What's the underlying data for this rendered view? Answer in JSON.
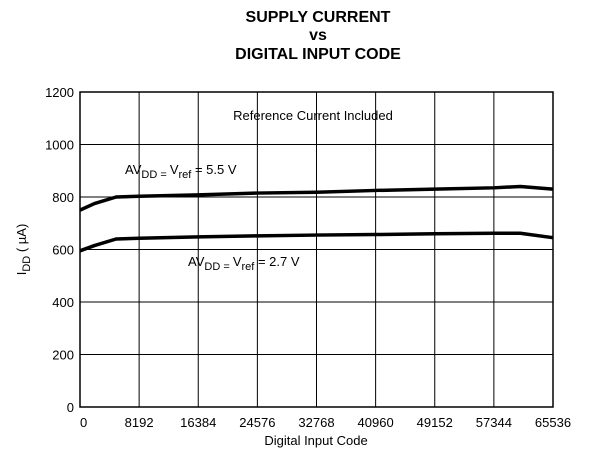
{
  "chart_data": {
    "type": "line",
    "title": [
      "SUPPLY CURRENT",
      "vs",
      "DIGITAL INPUT CODE"
    ],
    "x_label": "Digital Input Code",
    "y_label": [
      {
        "text": "I"
      },
      {
        "text": "DD",
        "sub": true
      },
      {
        "text": " ( µA)"
      }
    ],
    "annotations": [
      "Reference Current Included"
    ],
    "xlim": [
      0,
      65536
    ],
    "xticks": [
      0,
      8192,
      16384,
      24576,
      32768,
      40960,
      49152,
      57344,
      65536
    ],
    "ylim": [
      0,
      1200
    ],
    "yticks": [
      0,
      200,
      400,
      600,
      800,
      1000,
      1200
    ],
    "grid": true,
    "series": [
      {
        "name": [
          {
            "text": "AV"
          },
          {
            "text": "DD = ",
            "sub": true
          },
          {
            "text": "V"
          },
          {
            "text": "ref",
            "sub": true
          },
          {
            "text": " = 5.5 V"
          }
        ],
        "color": "#000000",
        "x": [
          0,
          2000,
          5000,
          8192,
          16384,
          24576,
          32768,
          40960,
          49152,
          57344,
          61000,
          65536
        ],
        "values": [
          750,
          775,
          800,
          803,
          808,
          815,
          818,
          825,
          830,
          835,
          840,
          830
        ]
      },
      {
        "name": [
          {
            "text": "AV"
          },
          {
            "text": "DD = ",
            "sub": true
          },
          {
            "text": "V"
          },
          {
            "text": "ref",
            "sub": true
          },
          {
            "text": " = 2.7 V"
          }
        ],
        "color": "#000000",
        "x": [
          0,
          2000,
          5000,
          8192,
          16384,
          24576,
          32768,
          40960,
          49152,
          57344,
          61000,
          65536
        ],
        "values": [
          595,
          615,
          640,
          643,
          648,
          652,
          655,
          657,
          660,
          662,
          662,
          645
        ]
      }
    ]
  }
}
